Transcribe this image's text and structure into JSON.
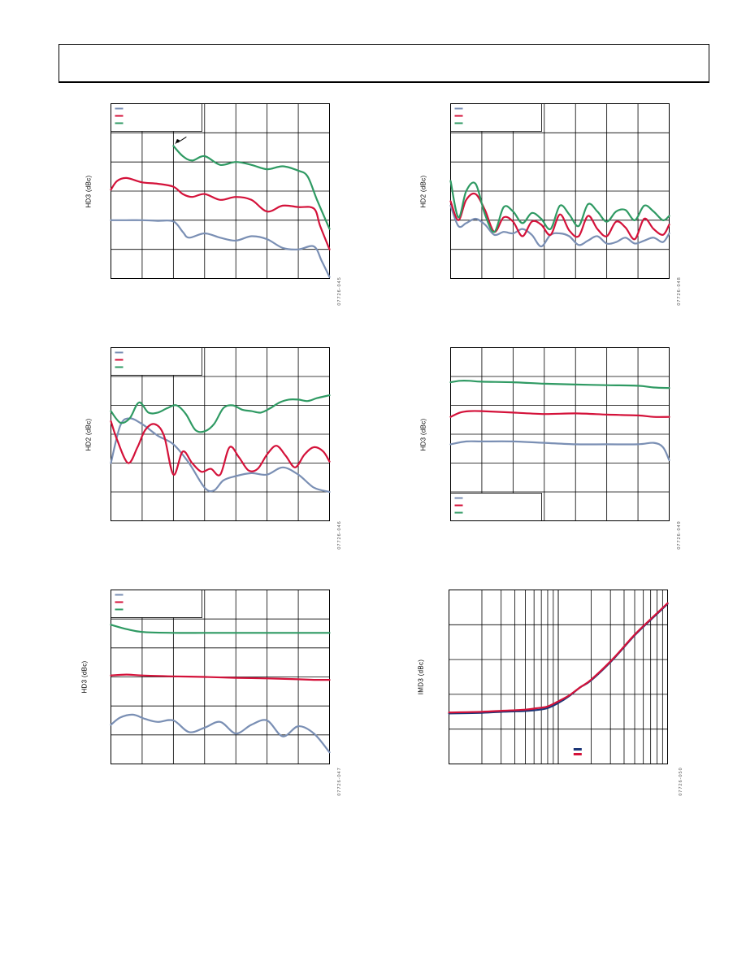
{
  "colors": {
    "blue": "#7a8fb4",
    "red": "#d4123a",
    "green": "#2f9a63",
    "navy": "#1c3677",
    "grid": "#000000"
  },
  "figure_ids": {
    "fig1": "07726-045",
    "fig2": "07726-048",
    "fig3": "07726-046",
    "fig4": "07726-049",
    "fig5": "07726-047",
    "fig6": "07726-050"
  },
  "chart_data": [
    {
      "id": "fig1",
      "type": "line",
      "ylabel": "HD3 (dBc)",
      "x_divisions": 7,
      "y_divisions": 6,
      "xlim": [
        0,
        7
      ],
      "ylim": [
        0,
        6
      ],
      "legend_position": "top-left",
      "legend": [
        {
          "color": "blue"
        },
        {
          "color": "red"
        },
        {
          "color": "green"
        }
      ],
      "annotation_arrow": {
        "at": [
          2.0,
          4.55
        ]
      },
      "series": [
        {
          "color": "blue",
          "x": [
            0,
            0.5,
            1,
            1.5,
            2,
            2.3,
            2.5,
            3,
            3.5,
            4,
            4.5,
            5,
            5.5,
            6,
            6.5,
            6.75,
            7
          ],
          "y": [
            2.0,
            2.0,
            2.0,
            1.98,
            1.96,
            1.6,
            1.4,
            1.55,
            1.4,
            1.3,
            1.45,
            1.35,
            1.05,
            1.0,
            1.1,
            0.6,
            0.05
          ]
        },
        {
          "color": "red",
          "x": [
            0,
            0.2,
            0.5,
            1,
            1.5,
            2,
            2.3,
            2.6,
            3,
            3.5,
            4,
            4.5,
            5,
            5.5,
            6,
            6.5,
            6.7,
            7
          ],
          "y": [
            3.05,
            3.35,
            3.45,
            3.3,
            3.25,
            3.15,
            2.9,
            2.8,
            2.9,
            2.7,
            2.8,
            2.7,
            2.3,
            2.5,
            2.45,
            2.4,
            1.8,
            1.0
          ]
        },
        {
          "color": "green",
          "x": [
            2,
            2.3,
            2.6,
            3,
            3.5,
            4,
            4.5,
            5,
            5.5,
            6,
            6.3,
            6.6,
            7
          ],
          "y": [
            4.55,
            4.2,
            4.05,
            4.2,
            3.9,
            4.0,
            3.9,
            3.75,
            3.85,
            3.7,
            3.5,
            2.7,
            1.7
          ]
        }
      ]
    },
    {
      "id": "fig2",
      "type": "line",
      "ylabel": "HD2 (dBc)",
      "x_divisions": 7,
      "y_divisions": 6,
      "xlim": [
        0,
        7
      ],
      "ylim": [
        0,
        6
      ],
      "legend_position": "top-left",
      "legend": [
        {
          "color": "blue"
        },
        {
          "color": "red"
        },
        {
          "color": "green"
        }
      ],
      "series": [
        {
          "color": "blue",
          "x": [
            0,
            0.25,
            0.5,
            0.8,
            1.1,
            1.4,
            1.7,
            2.0,
            2.3,
            2.6,
            2.9,
            3.2,
            3.5,
            3.8,
            4.1,
            4.4,
            4.7,
            5.0,
            5.3,
            5.6,
            5.9,
            6.2,
            6.5,
            6.8,
            7
          ],
          "y": [
            2.5,
            1.8,
            1.9,
            2.05,
            1.85,
            1.5,
            1.6,
            1.55,
            1.7,
            1.5,
            1.1,
            1.5,
            1.55,
            1.45,
            1.15,
            1.3,
            1.45,
            1.2,
            1.25,
            1.4,
            1.2,
            1.3,
            1.4,
            1.25,
            1.55
          ]
        },
        {
          "color": "red",
          "x": [
            0,
            0.25,
            0.5,
            0.8,
            1.1,
            1.4,
            1.7,
            2.0,
            2.3,
            2.6,
            2.9,
            3.2,
            3.5,
            3.8,
            4.1,
            4.4,
            4.7,
            5.0,
            5.3,
            5.6,
            5.9,
            6.2,
            6.5,
            6.8,
            7
          ],
          "y": [
            2.65,
            2.0,
            2.7,
            2.9,
            2.35,
            1.6,
            2.1,
            1.95,
            1.45,
            1.95,
            1.85,
            1.5,
            2.2,
            1.65,
            1.45,
            2.15,
            1.7,
            1.45,
            1.95,
            1.75,
            1.35,
            2.05,
            1.7,
            1.5,
            1.85
          ]
        },
        {
          "color": "green",
          "x": [
            0,
            0.25,
            0.5,
            0.8,
            1.1,
            1.4,
            1.7,
            2.0,
            2.3,
            2.6,
            2.9,
            3.2,
            3.5,
            3.8,
            4.1,
            4.4,
            4.7,
            5.0,
            5.3,
            5.6,
            5.9,
            6.2,
            6.5,
            6.8,
            7
          ],
          "y": [
            3.35,
            2.1,
            3.0,
            3.25,
            2.2,
            1.6,
            2.45,
            2.3,
            1.9,
            2.25,
            2.05,
            1.7,
            2.5,
            2.2,
            1.8,
            2.55,
            2.3,
            1.95,
            2.3,
            2.35,
            2.0,
            2.5,
            2.3,
            2.0,
            2.15
          ]
        }
      ]
    },
    {
      "id": "fig3",
      "type": "line",
      "ylabel": "HD2 (dBc)",
      "x_divisions": 7,
      "y_divisions": 6,
      "xlim": [
        0,
        7
      ],
      "ylim": [
        0,
        6
      ],
      "legend_position": "top-left",
      "legend": [
        {
          "color": "blue"
        },
        {
          "color": "red"
        },
        {
          "color": "green"
        }
      ],
      "series": [
        {
          "color": "blue",
          "x": [
            0,
            0.3,
            0.6,
            1,
            1.5,
            2,
            2.5,
            3,
            3.3,
            3.6,
            4,
            4.5,
            5,
            5.5,
            6,
            6.5,
            7
          ],
          "y": [
            2.0,
            3.3,
            3.55,
            3.35,
            2.95,
            2.65,
            2.0,
            1.15,
            1.05,
            1.4,
            1.55,
            1.65,
            1.6,
            1.85,
            1.6,
            1.15,
            1.0
          ]
        },
        {
          "color": "red",
          "x": [
            0,
            0.2,
            0.55,
            0.85,
            1.1,
            1.4,
            1.7,
            2.0,
            2.3,
            2.6,
            2.9,
            3.2,
            3.5,
            3.8,
            4.1,
            4.4,
            4.7,
            5.0,
            5.3,
            5.6,
            5.9,
            6.2,
            6.5,
            6.8,
            7
          ],
          "y": [
            3.45,
            2.8,
            2.0,
            2.55,
            3.15,
            3.35,
            2.95,
            1.6,
            2.4,
            2.0,
            1.7,
            1.8,
            1.6,
            2.55,
            2.2,
            1.75,
            1.8,
            2.3,
            2.6,
            2.25,
            1.85,
            2.3,
            2.55,
            2.4,
            2.05
          ]
        },
        {
          "color": "green",
          "x": [
            0,
            0.3,
            0.6,
            0.9,
            1.2,
            1.5,
            1.8,
            2.1,
            2.4,
            2.7,
            3.0,
            3.3,
            3.6,
            3.9,
            4.2,
            4.5,
            4.8,
            5.1,
            5.4,
            5.7,
            6.0,
            6.3,
            6.6,
            7
          ],
          "y": [
            3.8,
            3.4,
            3.55,
            4.1,
            3.75,
            3.75,
            3.9,
            4.0,
            3.7,
            3.15,
            3.1,
            3.35,
            3.9,
            4.0,
            3.85,
            3.8,
            3.75,
            3.9,
            4.1,
            4.2,
            4.2,
            4.15,
            4.25,
            4.35
          ]
        }
      ]
    },
    {
      "id": "fig4",
      "type": "line",
      "ylabel": "HD3 (dBc)",
      "x_divisions": 7,
      "y_divisions": 6,
      "xlim": [
        0,
        7
      ],
      "ylim": [
        0,
        6
      ],
      "legend_position": "bottom-left",
      "legend": [
        {
          "color": "blue"
        },
        {
          "color": "red"
        },
        {
          "color": "green"
        }
      ],
      "series": [
        {
          "color": "blue",
          "x": [
            0,
            0.5,
            1,
            2,
            3,
            4,
            5,
            6,
            6.5,
            6.8,
            7
          ],
          "y": [
            2.65,
            2.75,
            2.75,
            2.75,
            2.7,
            2.65,
            2.65,
            2.65,
            2.7,
            2.55,
            2.1
          ]
        },
        {
          "color": "red",
          "x": [
            0,
            0.3,
            0.6,
            1,
            2,
            3,
            4,
            5,
            6,
            6.5,
            7
          ],
          "y": [
            3.6,
            3.75,
            3.8,
            3.8,
            3.75,
            3.7,
            3.72,
            3.68,
            3.65,
            3.6,
            3.6
          ]
        },
        {
          "color": "green",
          "x": [
            0,
            0.3,
            0.6,
            1,
            2,
            3,
            4,
            5,
            6,
            6.5,
            7
          ],
          "y": [
            4.8,
            4.85,
            4.85,
            4.82,
            4.8,
            4.75,
            4.72,
            4.7,
            4.68,
            4.62,
            4.6
          ]
        }
      ]
    },
    {
      "id": "fig5",
      "type": "line",
      "ylabel": "HD3 (dBc)",
      "x_divisions": 7,
      "y_divisions": 6,
      "xlim": [
        0,
        7
      ],
      "ylim": [
        0,
        6
      ],
      "legend_position": "top-left",
      "legend": [
        {
          "color": "blue"
        },
        {
          "color": "red"
        },
        {
          "color": "green"
        }
      ],
      "series": [
        {
          "color": "blue",
          "x": [
            0,
            0.3,
            0.7,
            1.1,
            1.5,
            2.0,
            2.5,
            3.0,
            3.5,
            4.0,
            4.5,
            5.0,
            5.5,
            6.0,
            6.5,
            7
          ],
          "y": [
            1.35,
            1.6,
            1.7,
            1.55,
            1.45,
            1.5,
            1.1,
            1.25,
            1.45,
            1.05,
            1.35,
            1.5,
            0.95,
            1.3,
            1.05,
            0.4
          ]
        },
        {
          "color": "red",
          "x": [
            0,
            0.5,
            1,
            2,
            3,
            4,
            5,
            6,
            6.5,
            7
          ],
          "y": [
            3.05,
            3.08,
            3.05,
            3.02,
            3.0,
            2.97,
            2.95,
            2.92,
            2.9,
            2.9
          ]
        },
        {
          "color": "green",
          "x": [
            0,
            0.5,
            1,
            2,
            3,
            4,
            5,
            6,
            6.5,
            7
          ],
          "y": [
            4.8,
            4.65,
            4.55,
            4.52,
            4.52,
            4.52,
            4.52,
            4.52,
            4.52,
            4.52
          ]
        }
      ]
    },
    {
      "id": "fig6",
      "type": "line",
      "ylabel": "IMD3 (dBc)",
      "x_scale": "log",
      "x_decades": 2,
      "y_divisions": 5,
      "xlim": [
        0,
        2
      ],
      "ylim": [
        0,
        5
      ],
      "legend_position": "bottom-right",
      "legend": [
        {
          "color": "navy"
        },
        {
          "color": "red"
        }
      ],
      "series": [
        {
          "color": "navy",
          "x": [
            0,
            0.3,
            0.5,
            0.7,
            0.8,
            0.9,
            1.0,
            1.1,
            1.2,
            1.3,
            1.5,
            1.7,
            1.9,
            2.0
          ],
          "y": [
            1.45,
            1.47,
            1.5,
            1.52,
            1.55,
            1.6,
            1.75,
            1.95,
            2.2,
            2.4,
            3.0,
            3.7,
            4.3,
            4.6
          ]
        },
        {
          "color": "red",
          "x": [
            0,
            0.3,
            0.5,
            0.7,
            0.8,
            0.9,
            1.0,
            1.1,
            1.2,
            1.3,
            1.5,
            1.7,
            1.9,
            2.0
          ],
          "y": [
            1.48,
            1.5,
            1.53,
            1.56,
            1.6,
            1.65,
            1.8,
            1.97,
            2.2,
            2.42,
            3.02,
            3.72,
            4.32,
            4.62
          ]
        }
      ]
    }
  ]
}
